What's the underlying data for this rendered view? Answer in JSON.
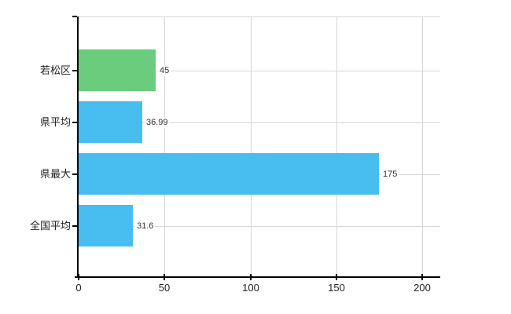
{
  "chart_data": {
    "type": "bar",
    "orientation": "horizontal",
    "categories": [
      "若松区",
      "県平均",
      "県最大",
      "全国平均"
    ],
    "values": [
      45,
      36.99,
      175,
      31.6
    ],
    "value_labels": [
      "45",
      "36.99",
      "175",
      "31.6"
    ],
    "bar_colors": [
      "#6bcc7d",
      "#47bdf0",
      "#47bdf0",
      "#47bdf0"
    ],
    "x_ticks": [
      0,
      50,
      100,
      150,
      200
    ],
    "x_tick_labels": [
      "0",
      "50",
      "100",
      "150",
      "200"
    ],
    "xlim": [
      0,
      210
    ],
    "grid": true,
    "legend_position": "none"
  },
  "colors": {
    "background": "#ffffff",
    "axis": "#000000",
    "gridline": "#d6d6d6",
    "category_text": "#222222",
    "value_text": "#333333",
    "bar_green": "#6bcc7d",
    "bar_blue": "#47bdf0"
  }
}
